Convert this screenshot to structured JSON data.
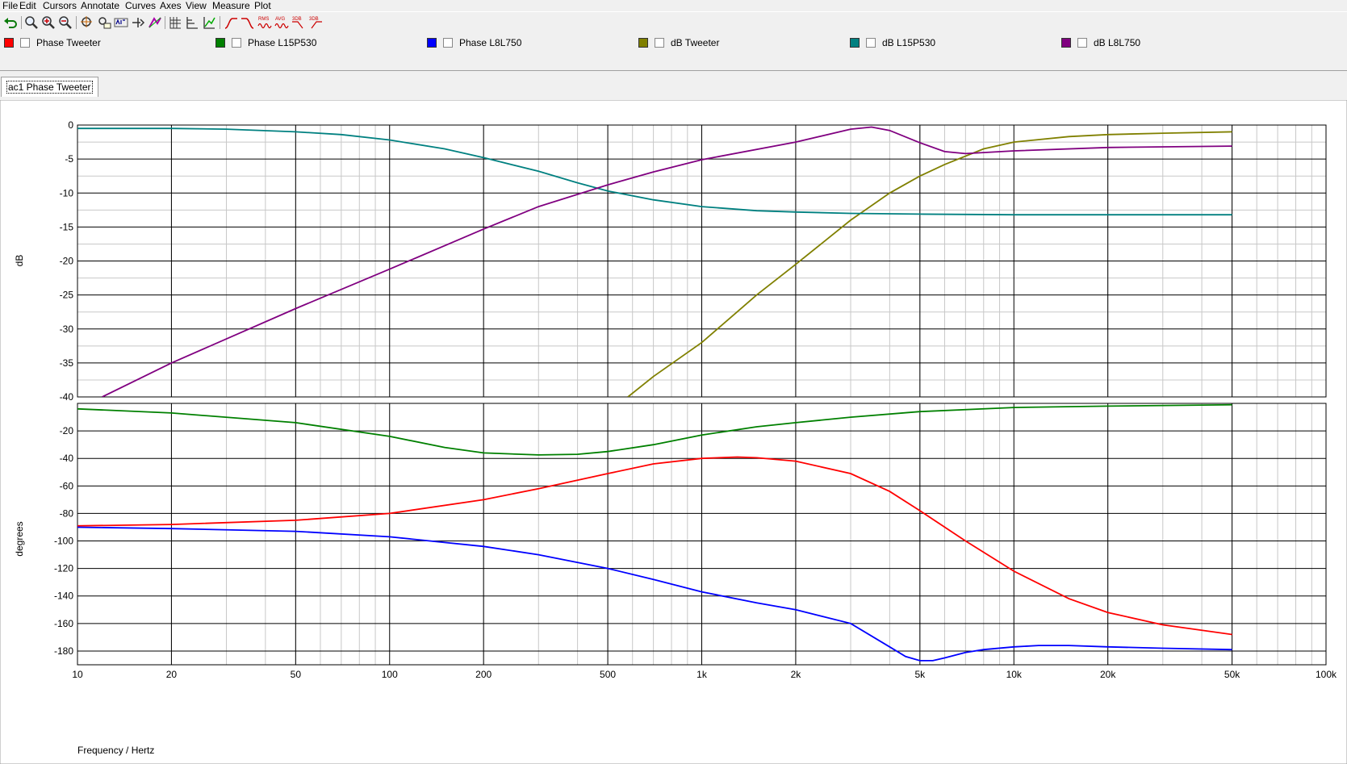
{
  "menu": [
    "File",
    "Edit",
    "Cursors",
    "Annotate",
    "Curves",
    "Axes",
    "View",
    "Measure",
    "Plot"
  ],
  "toolbar": {
    "icons": [
      "undo-icon",
      "zoom-fit-icon",
      "zoom-in-icon",
      "zoom-out-icon",
      "cursor-icon",
      "cursor-label-icon",
      "label-abc-icon",
      "marker-icon",
      "curves-edit-icon",
      "grid-icon",
      "axes-icon",
      "graph-tool-icon",
      "highpass-icon",
      "lowpass-icon",
      "rms-icon",
      "avg-icon",
      "3db-icon",
      "3db-alt-icon"
    ],
    "rms_label": "RMS",
    "avg_label": "AVG",
    "db3_label": "3DB",
    "db3b_label": "3DB"
  },
  "legend": [
    {
      "label": "Phase Tweeter",
      "color": "#ff0000"
    },
    {
      "label": "Phase L15P530",
      "color": "#008000"
    },
    {
      "label": "Phase L8L750",
      "color": "#0000ff"
    },
    {
      "label": "dB Tweeter",
      "color": "#808000"
    },
    {
      "label": "dB L15P530",
      "color": "#008080"
    },
    {
      "label": "dB L8L750",
      "color": "#800080"
    }
  ],
  "tab": {
    "label": "ac1 Phase Tweeter"
  },
  "chart_data": [
    {
      "type": "line",
      "xscale": "log",
      "xlim": [
        10,
        100000
      ],
      "ylim": [
        -40,
        0
      ],
      "ylabel": "dB",
      "yticks": [
        0,
        -5,
        -10,
        -15,
        -20,
        -25,
        -30,
        -35,
        -40
      ],
      "series": [
        {
          "name": "dB Tweeter",
          "color": "#808000",
          "x": [
            580,
            700,
            1000,
            1500,
            2000,
            3000,
            4000,
            5000,
            6000,
            8000,
            10000,
            15000,
            20000,
            30000,
            50000
          ],
          "y": [
            -40,
            -37,
            -32,
            -25,
            -20.5,
            -14,
            -10,
            -7.5,
            -5.8,
            -3.5,
            -2.5,
            -1.7,
            -1.4,
            -1.2,
            -1.0
          ]
        },
        {
          "name": "dB L15P530",
          "color": "#008080",
          "x": [
            10,
            20,
            30,
            50,
            70,
            100,
            150,
            200,
            300,
            400,
            500,
            700,
            1000,
            1500,
            2000,
            3000,
            5000,
            10000,
            20000,
            50000
          ],
          "y": [
            -0.5,
            -0.5,
            -0.6,
            -1.0,
            -1.4,
            -2.2,
            -3.5,
            -4.8,
            -6.8,
            -8.5,
            -9.7,
            -11.0,
            -12.0,
            -12.6,
            -12.8,
            -13.0,
            -13.1,
            -13.2,
            -13.2,
            -13.2
          ]
        },
        {
          "name": "dB L8L750",
          "color": "#800080",
          "x": [
            12,
            20,
            50,
            100,
            200,
            300,
            500,
            700,
            1000,
            2000,
            3000,
            3500,
            4000,
            5000,
            6000,
            7000,
            10000,
            20000,
            50000
          ],
          "y": [
            -40,
            -35,
            -27,
            -21.2,
            -15.3,
            -12,
            -8.8,
            -6.9,
            -5.1,
            -2.5,
            -0.6,
            -0.3,
            -0.8,
            -2.6,
            -3.9,
            -4.2,
            -3.8,
            -3.3,
            -3.1
          ]
        }
      ]
    },
    {
      "type": "line",
      "xscale": "log",
      "xlim": [
        10,
        100000
      ],
      "ylim": [
        -190,
        0
      ],
      "ylabel": "degrees",
      "xlabel": "Frequency / Hertz",
      "yticks": [
        -20,
        -40,
        -60,
        -80,
        -100,
        -120,
        -140,
        -160,
        -180
      ],
      "xticks": [
        {
          "v": 10,
          "label": "10"
        },
        {
          "v": 20,
          "label": "20"
        },
        {
          "v": 50,
          "label": "50"
        },
        {
          "v": 100,
          "label": "100"
        },
        {
          "v": 200,
          "label": "200"
        },
        {
          "v": 500,
          "label": "500"
        },
        {
          "v": 1000,
          "label": "1k"
        },
        {
          "v": 2000,
          "label": "2k"
        },
        {
          "v": 5000,
          "label": "5k"
        },
        {
          "v": 10000,
          "label": "10k"
        },
        {
          "v": 20000,
          "label": "20k"
        },
        {
          "v": 50000,
          "label": "50k"
        },
        {
          "v": 100000,
          "label": "100k"
        }
      ],
      "series": [
        {
          "name": "Phase Tweeter",
          "color": "#ff0000",
          "x": [
            10,
            20,
            50,
            100,
            200,
            300,
            500,
            700,
            1000,
            1300,
            1500,
            2000,
            3000,
            4000,
            5000,
            7000,
            10000,
            15000,
            20000,
            30000,
            50000
          ],
          "y": [
            -89,
            -88,
            -85,
            -80,
            -70,
            -62,
            -51,
            -44,
            -40,
            -39,
            -39.5,
            -42,
            -51,
            -64,
            -78,
            -100,
            -122,
            -142,
            -152,
            -161,
            -168
          ]
        },
        {
          "name": "Phase L15P530",
          "color": "#008000",
          "x": [
            10,
            20,
            50,
            100,
            150,
            200,
            300,
            400,
            500,
            700,
            1000,
            1500,
            2000,
            3000,
            5000,
            10000,
            20000,
            50000
          ],
          "y": [
            -4,
            -7,
            -14,
            -24,
            -32,
            -36,
            -37.5,
            -37,
            -35,
            -30,
            -23,
            -17,
            -14,
            -10,
            -6,
            -3,
            -2,
            -1
          ]
        },
        {
          "name": "Phase L8L750",
          "color": "#0000ff",
          "x": [
            10,
            20,
            50,
            100,
            200,
            300,
            500,
            700,
            1000,
            1500,
            2000,
            3000,
            4000,
            4500,
            5000,
            5500,
            6000,
            7000,
            8000,
            10000,
            12000,
            15000,
            20000,
            30000,
            50000
          ],
          "y": [
            -90,
            -91,
            -93,
            -97,
            -104,
            -110,
            -120,
            -128,
            -137,
            -145,
            -150,
            -160,
            -177,
            -184,
            -187,
            -187,
            -185,
            -181,
            -179,
            -177,
            -176,
            -176,
            -177,
            -178,
            -179
          ]
        }
      ]
    }
  ]
}
